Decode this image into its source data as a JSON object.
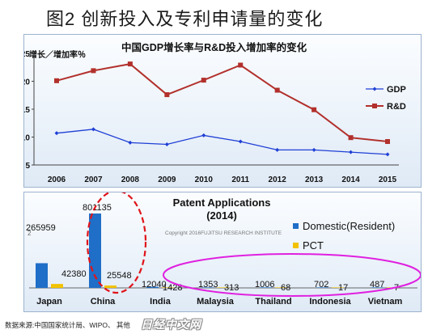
{
  "page_title": "图2 创新投入及专利申请量的变化",
  "footer": "数据来源:中国国家统计局、WIPO、 其他",
  "watermark": "日经中文网",
  "colors": {
    "gdp": "#1f3fd6",
    "rd": "#b2302c",
    "domestic": "#1f6ec7",
    "pct": "#f2c200",
    "ellipse_red": "#e0141a",
    "ellipse_magenta": "#e020e0"
  },
  "chart_data": [
    {
      "type": "line",
      "title": "中国GDP增长率与R&D投入增加率的变化",
      "ylabel": "增长／增加率％",
      "xlabel": "",
      "x": [
        "2006",
        "2007",
        "2008",
        "2009",
        "2010",
        "2011",
        "2012",
        "2013",
        "2014",
        "2015"
      ],
      "ylim": [
        5,
        25
      ],
      "yticks": [
        5,
        10,
        15,
        20,
        25
      ],
      "grid": false,
      "legend": "right",
      "series": [
        {
          "name": "GDP",
          "marker": "diamond",
          "values": [
            10.7,
            11.4,
            9.0,
            8.7,
            10.3,
            9.2,
            7.7,
            7.7,
            7.3,
            6.9
          ]
        },
        {
          "name": "R&D",
          "marker": "square",
          "values": [
            20.1,
            21.9,
            23.1,
            17.6,
            20.2,
            22.9,
            18.4,
            14.9,
            9.9,
            9.2
          ]
        }
      ]
    },
    {
      "type": "bar",
      "title": "Patent Applications",
      "subtitle": "(2014)",
      "xlabel": "",
      "ylabel": "",
      "credit": "Copyright 2016FUJITSU RESEARCH INSTITUTE",
      "axis_mark": "2",
      "categories": [
        "Japan",
        "China",
        "India",
        "Malaysia",
        "Thailand",
        "Indonesia",
        "Vietnam"
      ],
      "legend": "right",
      "series": [
        {
          "name": "Domestic(Resident)",
          "values": [
            265959,
            801135,
            12040,
            1353,
            1006,
            702,
            487
          ]
        },
        {
          "name": "PCT",
          "values": [
            42380,
            25548,
            1428,
            313,
            68,
            17,
            7
          ]
        }
      ]
    }
  ]
}
